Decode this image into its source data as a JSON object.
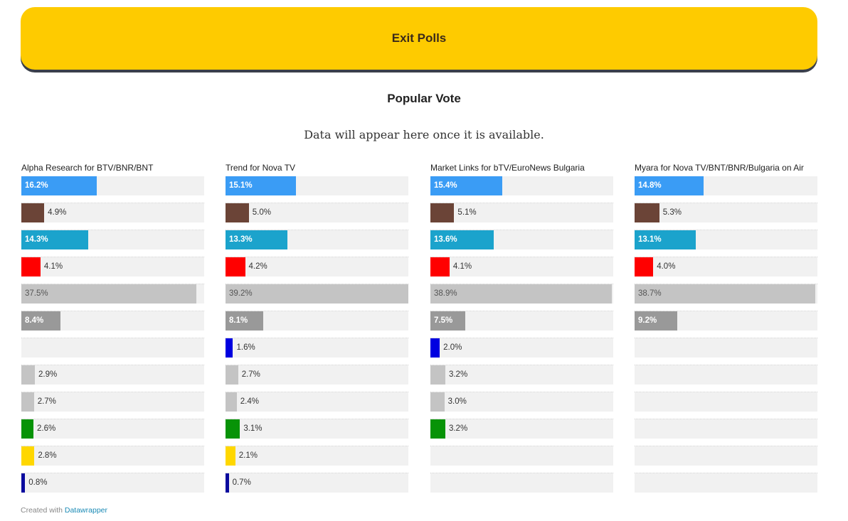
{
  "header": {
    "title": "Exit Polls"
  },
  "subtitle": "Popular Vote",
  "notice": "Data will appear here once it is available.",
  "footer": {
    "prefix": "Created with",
    "link": "Datawrapper"
  },
  "chart_data": {
    "type": "bar",
    "xlim": [
      0,
      39.2
    ],
    "row_colors": [
      "#3a9cf5",
      "#6b4437",
      "#1ba3cc",
      "#ff0000",
      "#c4c4c4",
      "#999999",
      "#0000e0",
      "#c4c4c4",
      "#c4c4c4",
      "#079307",
      "#ffd700",
      "#0a0a9e"
    ],
    "panels": [
      {
        "title": "Alpha Research for BTV/BNR/BNT",
        "values": [
          16.2,
          4.9,
          14.3,
          4.1,
          37.5,
          8.4,
          null,
          2.9,
          2.7,
          2.6,
          2.8,
          0.8
        ]
      },
      {
        "title": "Trend for Nova TV",
        "values": [
          15.1,
          5.0,
          13.3,
          4.2,
          39.2,
          8.1,
          1.6,
          2.7,
          2.4,
          3.1,
          2.1,
          0.7
        ]
      },
      {
        "title": "Market Links for bTV/EuroNews Bulgaria",
        "values": [
          15.4,
          5.1,
          13.6,
          4.1,
          38.9,
          7.5,
          2.0,
          3.2,
          3.0,
          3.2,
          null,
          null
        ]
      },
      {
        "title": "Myara for Nova TV/BNT/BNR/Bulgaria on Air",
        "values": [
          14.8,
          5.3,
          13.1,
          4.0,
          38.7,
          9.2,
          null,
          null,
          null,
          null,
          null,
          null
        ]
      }
    ]
  }
}
